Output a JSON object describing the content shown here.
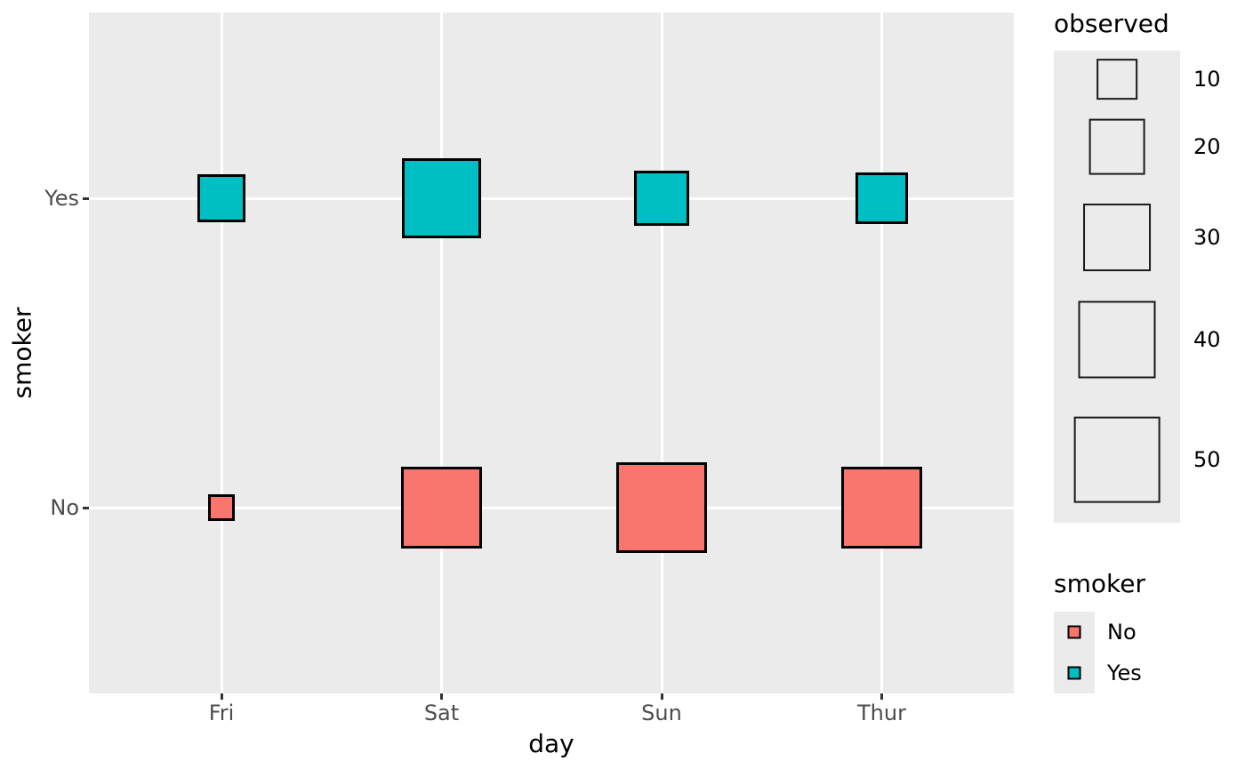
{
  "chart_data": {
    "type": "scatter",
    "subtype": "count-squares (size-mapped square points, ggplot style)",
    "title": "",
    "xlabel": "day",
    "ylabel": "smoker",
    "x_categories": [
      "Fri",
      "Sat",
      "Sun",
      "Thur"
    ],
    "y_categories": [
      "Yes",
      "No"
    ],
    "points": [
      {
        "x": "Fri",
        "y": "Yes",
        "observed": 15,
        "color": "#00BFC4"
      },
      {
        "x": "Sat",
        "y": "Yes",
        "observed": 42,
        "color": "#00BFC4"
      },
      {
        "x": "Sun",
        "y": "Yes",
        "observed": 19,
        "color": "#00BFC4"
      },
      {
        "x": "Thur",
        "y": "Yes",
        "observed": 17,
        "color": "#00BFC4"
      },
      {
        "x": "Fri",
        "y": "No",
        "observed": 4,
        "color": "#F8766D"
      },
      {
        "x": "Sat",
        "y": "No",
        "observed": 45,
        "color": "#F8766D"
      },
      {
        "x": "Sun",
        "y": "No",
        "observed": 57,
        "color": "#F8766D"
      },
      {
        "x": "Thur",
        "y": "No",
        "observed": 45,
        "color": "#F8766D"
      }
    ],
    "size_legend": {
      "title": "observed",
      "values": [
        10,
        20,
        30,
        40,
        50
      ]
    },
    "color_legend": {
      "title": "smoker",
      "entries": [
        {
          "label": "No",
          "color": "#F8766D"
        },
        {
          "label": "Yes",
          "color": "#00BFC4"
        }
      ]
    },
    "colors": {
      "No": "#F8766D",
      "Yes": "#00BFC4"
    },
    "size_encoding": "square side proportional to sqrt(observed)",
    "grid": "major white gridlines on gray panel",
    "legend_position": "right"
  }
}
